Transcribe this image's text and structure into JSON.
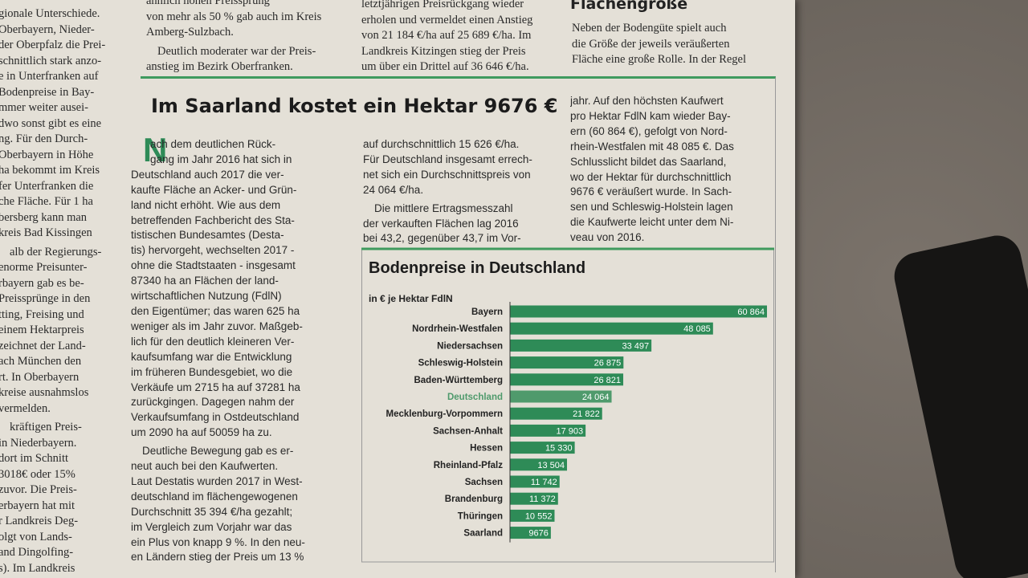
{
  "left_column": [
    [
      "gionale Unterschiede.",
      "Oberbayern, Nieder-",
      "der Oberpfalz die Prei-",
      "schnittlich stark anzo-",
      "e in Unterfranken auf",
      "Bodenpreise in Bay-",
      "mmer weiter ausei-",
      "dwo sonst gibt es eine",
      "ng. Für den Durch-",
      "Oberbayern in Höhe",
      "ha bekommt im Kreis",
      "fer Unterfranken die",
      "che Fläche. Für 1 ha",
      "bersberg kann man",
      "kreis Bad Kissingen"
    ],
    [
      "alb der Regierungs-",
      "enorme Preisunter-",
      "rbayern gab es be-",
      "Preissprünge in den",
      "tting, Freising und",
      "einem Hektarpreis",
      "zeichnet der Land-",
      "ach München den",
      "rt. In Oberbayern",
      "kreise ausnahmslos",
      "vermelden."
    ],
    [
      "kräftigen Preis-",
      "in Niederbayern.",
      "dort im Schnitt",
      "3018€ oder 15%",
      "zuvor. Die Preis-",
      "erbayern hat mit",
      "r Landkreis Deg-",
      "olgt von Lands-",
      "and Dingolfing-",
      "s). Im Landkreis"
    ]
  ],
  "top_columns": [
    [
      [
        "ähnlich hohen Preissprung",
        "von mehr als 50 % gab auch im Kreis",
        "Amberg-Sulzbach."
      ],
      [
        "Deutlich moderater war der Preis-",
        "anstieg im Bezirk Oberfranken."
      ]
    ],
    [
      [
        "letztjährigen Preisrückgang wieder",
        "erholen und vermeldet einen Anstieg",
        "von 21 184 €/ha auf 25 689 €/ha. Im",
        "Landkreis Kitzingen stieg der Preis",
        "um über ein Drittel auf 36 646 €/ha."
      ]
    ],
    [
      [
        "Neben der Bodengüte spielt auch",
        "die Größe der jeweils veräußerten",
        "Fläche eine große Rolle. In der Regel"
      ]
    ]
  ],
  "side_heading": "Flächengröße",
  "article": {
    "title": "Im Saarland kostet ein Hektar 9676 €",
    "dropcap": "N",
    "columns": [
      [
        [
          "ach dem deutlichen Rück-",
          "gang im Jahr 2016 hat sich in",
          "Deutschland auch 2017 die ver-",
          "kaufte Fläche an Acker- und Grün-",
          "land nicht erhöht. Wie aus dem",
          "betreffenden Fachbericht des Sta-",
          "tistischen Bundesamtes (Desta-",
          "tis) hervorgeht, wechselten 2017 -",
          "ohne die Stadtstaaten - insgesamt",
          "87340 ha an Flächen der land-",
          "wirtschaftlichen Nutzung (FdlN)",
          "den Eigentümer; das waren 625 ha",
          "weniger als im Jahr zuvor. Maßgeb-",
          "lich für den deutlich kleineren Ver-",
          "kaufsumfang war die Entwicklung",
          "im früheren Bundesgebiet, wo die",
          "Verkäufe um 2715 ha auf 37281 ha",
          "zurückgingen. Dagegen nahm der",
          "Verkaufsumfang in Ostdeutschland",
          "um 2090 ha auf 50059 ha zu."
        ],
        [
          "Deutliche Bewegung gab es er-",
          "neut auch bei den Kaufwerten.",
          "Laut Destatis wurden 2017 in West-",
          "deutschland im flächengewogenen",
          "Durchschnitt 35 394 €/ha gezahlt;",
          "im Vergleich zum Vorjahr war das",
          "ein Plus von knapp 9 %. In den neu-",
          "en Ländern stieg der Preis um 13 %"
        ]
      ],
      [
        [
          "auf durchschnittlich 15 626 €/ha.",
          "Für Deutschland insgesamt errech-",
          "net sich ein Durchschnittspreis von",
          "24 064 €/ha."
        ],
        [
          "Die mittlere Ertragsmesszahl",
          "der verkauften Flächen lag 2016",
          "bei 43,2, gegenüber 43,7 im Vor-"
        ]
      ],
      [
        [
          "jahr. Auf den höchsten Kaufwert",
          "pro Hektar FdlN kam wieder Bay-",
          "ern (60 864 €), gefolgt von Nord-",
          "rhein-Westfalen mit 48 085 €. Das",
          "Schlusslicht bildet das Saarland,",
          "wo der Hektar für durchschnittlich",
          "9676 € veräußert wurde. In Sach-",
          "sen und Schleswig-Holstein lagen",
          "die Kaufwerte leicht unter dem Ni-",
          "veau von 2016."
        ]
      ]
    ]
  },
  "chart_data": {
    "type": "hbar",
    "title": "Bodenpreise in Deutschland",
    "subtitle": "in € je Hektar FdlN",
    "categories": [
      "Bayern",
      "Nordrhein-Westfalen",
      "Niedersachsen",
      "Schleswig-Holstein",
      "Baden-Württemberg",
      "Deutschland",
      "Mecklenburg-Vorpommern",
      "Sachsen-Anhalt",
      "Hessen",
      "Rheinland-Pfalz",
      "Sachsen",
      "Brandenburg",
      "Thüringen",
      "Saarland"
    ],
    "values": [
      60864,
      48085,
      33497,
      26875,
      26821,
      24064,
      21822,
      17903,
      15330,
      13504,
      11742,
      11372,
      10552,
      9676
    ],
    "value_labels": [
      "60 864",
      "48 085",
      "33 497",
      "26 875",
      "26 821",
      "24 064",
      "21 822",
      "17 903",
      "15 330",
      "13 504",
      "11 742",
      "11 372",
      "10 552",
      "9676"
    ],
    "color": "#2e8b57",
    "highlight": 5,
    "highlight_color": "#4f9a6c"
  }
}
